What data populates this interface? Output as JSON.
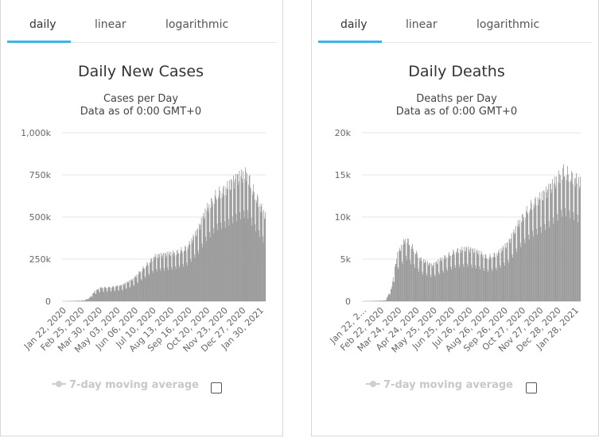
{
  "panels": [
    {
      "tabs": [
        {
          "label": "daily"
        },
        {
          "label": "linear"
        },
        {
          "label": "logarithmic"
        }
      ],
      "legend_label": "7-day moving average",
      "chart_data": {
        "type": "bar",
        "title": "Daily New Cases",
        "subtitle": "Cases per Day",
        "subtitle2": "Data as of 0:00 GMT+0",
        "ylim": [
          0,
          1000000
        ],
        "y_ticks": [
          0,
          250000,
          500000,
          750000,
          1000000
        ],
        "y_tick_labels": [
          "0",
          "250k",
          "500k",
          "750k",
          "1,000k"
        ],
        "x_tick_labels": [
          "Jan 22, 2020",
          "Feb 25, 2020",
          "Mar 30, 2020",
          "May 03, 2020",
          "Jun 06, 2020",
          "Jul 10, 2020",
          "Aug 13, 2020",
          "Sep 16, 2020",
          "Oct 20, 2020",
          "Nov 23, 2020",
          "Dec 27, 2020",
          "Jan 30, 2021"
        ],
        "grid": true,
        "color": "#999999",
        "anchors": [
          [
            0,
            0
          ],
          [
            20,
            2000
          ],
          [
            40,
            5000
          ],
          [
            50,
            20000
          ],
          [
            60,
            60000
          ],
          [
            70,
            80000
          ],
          [
            90,
            85000
          ],
          [
            110,
            95000
          ],
          [
            130,
            130000
          ],
          [
            150,
            200000
          ],
          [
            170,
            265000
          ],
          [
            190,
            275000
          ],
          [
            210,
            290000
          ],
          [
            230,
            320000
          ],
          [
            250,
            420000
          ],
          [
            265,
            540000
          ],
          [
            285,
            640000
          ],
          [
            300,
            660000
          ],
          [
            320,
            720000
          ],
          [
            340,
            760000
          ],
          [
            350,
            670000
          ],
          [
            374,
            500000
          ]
        ]
      }
    },
    {
      "tabs": [
        {
          "label": "daily"
        },
        {
          "label": "linear"
        },
        {
          "label": "logarithmic"
        }
      ],
      "legend_label": "7-day moving average",
      "chart_data": {
        "type": "bar",
        "title": "Daily Deaths",
        "subtitle": "Deaths per Day",
        "subtitle2": "Data as of 0:00 GMT+0",
        "ylim": [
          0,
          20000
        ],
        "y_ticks": [
          0,
          5000,
          10000,
          15000,
          20000
        ],
        "y_tick_labels": [
          "0",
          "5k",
          "10k",
          "15k",
          "20k"
        ],
        "x_tick_labels": [
          "Jan 22, 2...",
          "Feb 22, 2020",
          "Mar 24, 2020",
          "Apr 24, 2020",
          "May 25, 2020",
          "Jun 25, 2020",
          "Jul 26, 2020",
          "Aug 26, 2020",
          "Sep 26, 2020",
          "Oct 27, 2020",
          "Nov 27, 2020",
          "Dec 28, 2020",
          "Jan 28, 2021"
        ],
        "grid": true,
        "color": "#999999",
        "anchors": [
          [
            0,
            0
          ],
          [
            40,
            100
          ],
          [
            50,
            1500
          ],
          [
            60,
            5500
          ],
          [
            75,
            7500
          ],
          [
            85,
            6500
          ],
          [
            100,
            5000
          ],
          [
            120,
            4200
          ],
          [
            140,
            5200
          ],
          [
            160,
            6000
          ],
          [
            180,
            6200
          ],
          [
            200,
            5800
          ],
          [
            215,
            5200
          ],
          [
            230,
            5600
          ],
          [
            250,
            6800
          ],
          [
            270,
            9500
          ],
          [
            290,
            11500
          ],
          [
            310,
            12500
          ],
          [
            330,
            14000
          ],
          [
            345,
            15500
          ],
          [
            365,
            14500
          ],
          [
            374,
            14000
          ]
        ]
      }
    }
  ]
}
